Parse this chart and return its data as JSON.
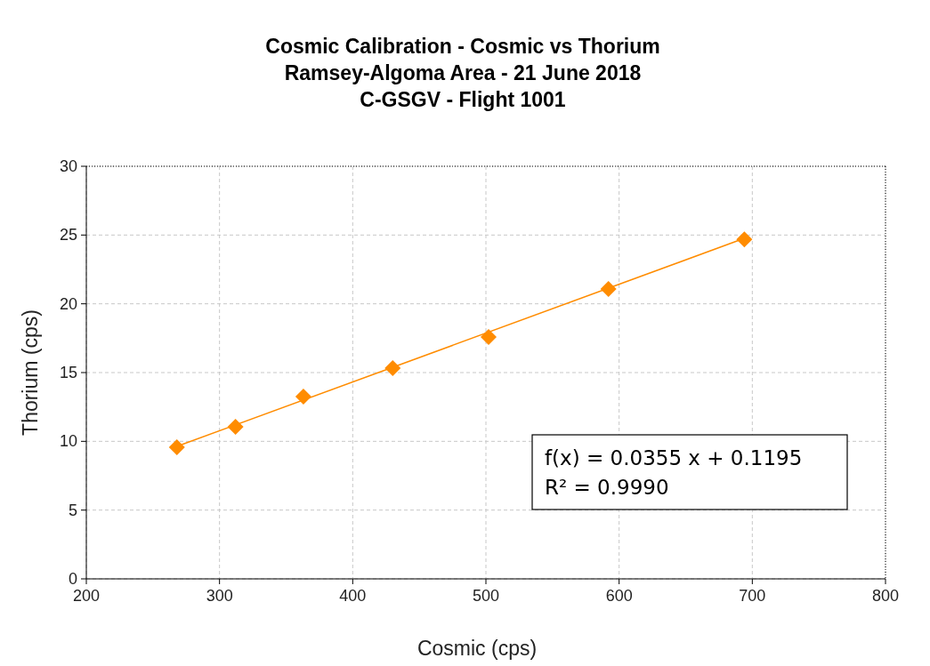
{
  "chart_data": {
    "type": "scatter",
    "title": "Cosmic Calibration - Cosmic vs Thorium",
    "subtitle": "Ramsey-Algoma Area - 21 June 2018\nC-GSGV - Flight 1001",
    "xlabel": "Cosmic (cps)",
    "ylabel": "Thorium (cps)",
    "xlim": [
      200,
      800
    ],
    "xticks": [
      200,
      300,
      400,
      500,
      600,
      700,
      800
    ],
    "ylim": [
      0,
      30
    ],
    "yticks": [
      0,
      5,
      10,
      15,
      20,
      25,
      30
    ],
    "grid": true,
    "marker": "diamond",
    "series": [
      {
        "type": "scatter",
        "color": "#ff8c00",
        "x": [
          268,
          312,
          363,
          430,
          502,
          592,
          694
        ],
        "values": [
          9.57,
          11.05,
          13.25,
          15.32,
          17.58,
          21.07,
          24.69
        ]
      },
      {
        "type": "line",
        "color": "#ff8c00",
        "marker": "none",
        "line_style": "solid",
        "x": [
          268,
          694
        ],
        "values": [
          9.63,
          24.76
        ]
      }
    ],
    "annotations": [
      "f(x) = 0.0355 x + 0.1195",
      "R² = 0.9990"
    ]
  }
}
